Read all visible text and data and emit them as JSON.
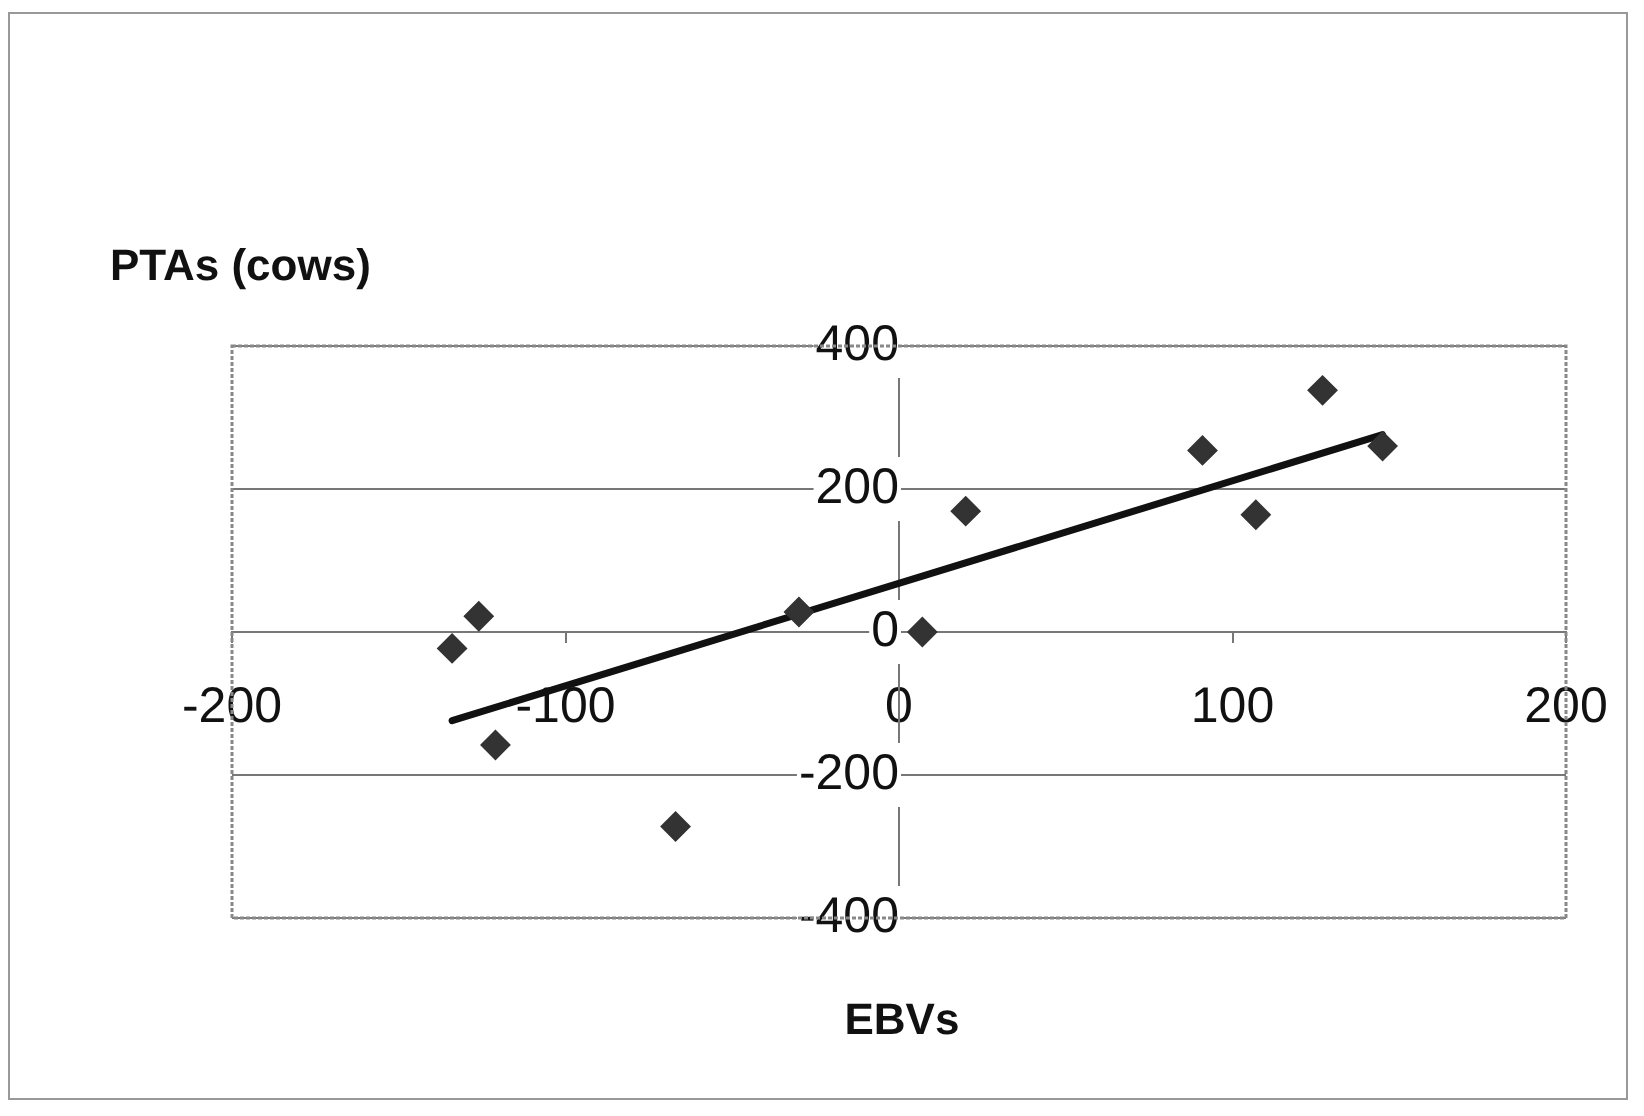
{
  "chart_data": {
    "type": "scatter",
    "xlabel": "EBVs",
    "ylabel": "PTAs (cows)",
    "xlim": [
      -200,
      200
    ],
    "xticks": [
      -200,
      -100,
      0,
      100,
      200
    ],
    "ylim": [
      -400,
      400
    ],
    "yticks": [
      -400,
      -200,
      0,
      200,
      400
    ],
    "grid": "y",
    "legend": false,
    "marker": "diamond",
    "series": [
      {
        "type": "scatter",
        "color": "#333333",
        "x": [
          -134,
          -126,
          -121,
          -67,
          -30,
          7,
          20,
          91,
          107,
          127,
          145
        ],
        "values": [
          -23,
          22,
          -158,
          -272,
          28,
          0,
          169,
          254,
          164,
          338,
          260
        ]
      },
      {
        "type": "line",
        "color": "#111111",
        "x": [
          -134,
          145
        ],
        "values": [
          -124,
          276
        ],
        "marker": "none",
        "line_style": "solid"
      }
    ]
  }
}
